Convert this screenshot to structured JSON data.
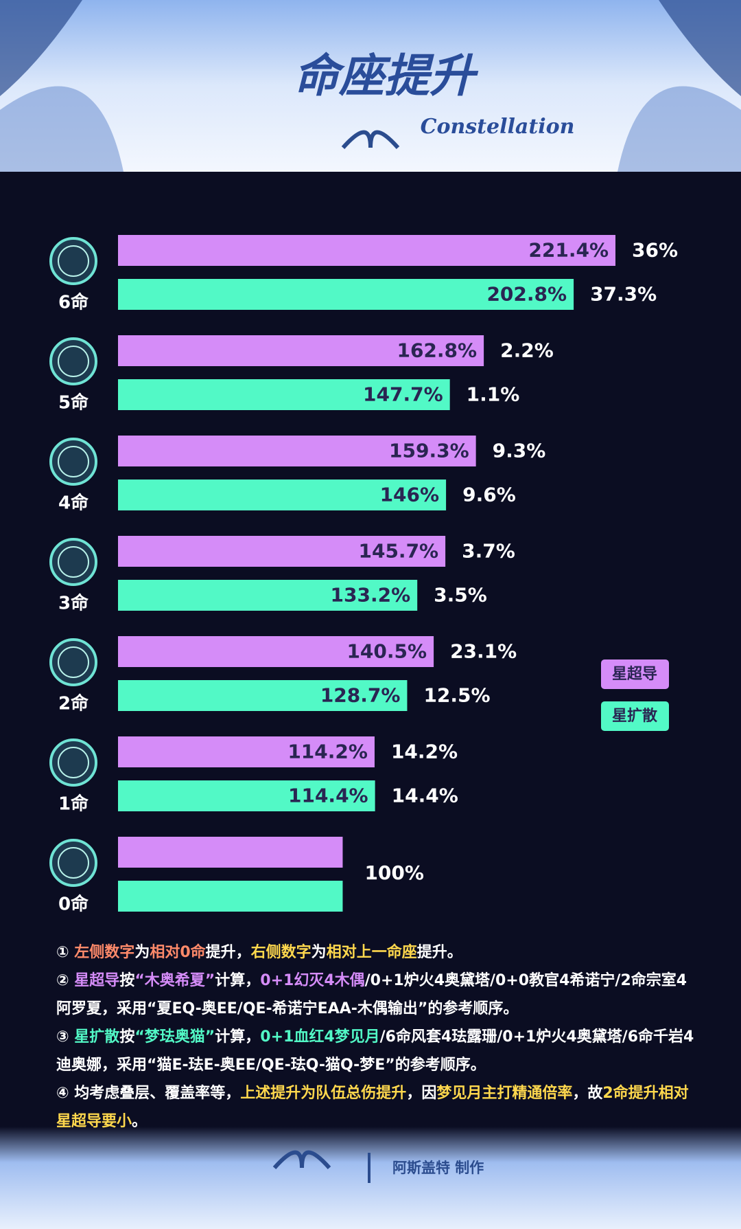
{
  "chart_data": {
    "type": "bar",
    "orientation": "horizontal",
    "title": "命座提升",
    "subtitle": "Constellation",
    "categories": [
      "6命",
      "5命",
      "4命",
      "3命",
      "2命",
      "1命",
      "0命"
    ],
    "series": [
      {
        "name": "星超导",
        "color": "#d58cf8",
        "values": [
          221.4,
          162.8,
          159.3,
          145.7,
          140.5,
          114.2,
          100
        ],
        "value_labels": [
          "221.4%",
          "162.8%",
          "159.3%",
          "145.7%",
          "140.5%",
          "114.2%",
          null
        ],
        "increase": [
          36,
          2.2,
          9.3,
          3.7,
          23.1,
          14.2,
          null
        ],
        "increase_labels": [
          "36%",
          "2.2%",
          "9.3%",
          "3.7%",
          "23.1%",
          "14.2%",
          null
        ]
      },
      {
        "name": "星扩散",
        "color": "#52f9c6",
        "values": [
          202.8,
          147.7,
          146,
          133.2,
          128.7,
          114.4,
          100
        ],
        "value_labels": [
          "202.8%",
          "147.7%",
          "146%",
          "133.2%",
          "128.7%",
          "114.4%",
          null
        ],
        "increase": [
          37.3,
          1.1,
          9.6,
          3.5,
          12.5,
          14.4,
          null
        ],
        "increase_labels": [
          "37.3%",
          "1.1%",
          "9.6%",
          "3.5%",
          "12.5%",
          "14.4%",
          null
        ]
      }
    ],
    "base_label": "100%"
  },
  "notes": [
    [
      {
        "text": "① "
      },
      {
        "text": "左侧数字",
        "color": "#ff8a6a"
      },
      {
        "text": "为"
      },
      {
        "text": "相对0命",
        "color": "#ff8a6a"
      },
      {
        "text": "提升，"
      },
      {
        "text": "右侧数字",
        "color": "#ffd84d"
      },
      {
        "text": "为"
      },
      {
        "text": "相对上一命座",
        "color": "#ffd84d"
      },
      {
        "text": "提升。"
      }
    ],
    [
      {
        "text": "② "
      },
      {
        "text": "星超导",
        "color": "#d58cf8"
      },
      {
        "text": "按"
      },
      {
        "text": "“木奥希夏”",
        "color": "#d58cf8"
      },
      {
        "text": "计算，"
      },
      {
        "text": "0+1幻灭4木偶",
        "color": "#d58cf8"
      },
      {
        "text": "/0+1炉火4奥黛塔/0+0教官4希诺宁/2命宗室4阿罗夏，采用“夏EQ-奥EE/QE-希诺宁EAA-木偶输出”的参考顺序。"
      }
    ],
    [
      {
        "text": "③ "
      },
      {
        "text": "星扩散",
        "color": "#52f9c6"
      },
      {
        "text": "按"
      },
      {
        "text": "“梦珐奥猫”",
        "color": "#52f9c6"
      },
      {
        "text": "计算，"
      },
      {
        "text": "0+1血红4梦见月",
        "color": "#52f9c6"
      },
      {
        "text": "/6命风套4珐露珊/0+1炉火4奥黛塔/6命千岩4迪奥娜，采用“猫E-珐E-奥EE/QE-珐Q-猫Q-梦E”的参考顺序。"
      }
    ],
    [
      {
        "text": "④ 均考虑叠层、覆盖率等，"
      },
      {
        "text": "上述提升为队伍总伤提升",
        "color": "#ffd84d"
      },
      {
        "text": "，因"
      },
      {
        "text": "梦见月主打精通倍率",
        "color": "#ffd84d"
      },
      {
        "text": "，故"
      },
      {
        "text": "2命提升相对星超导要小",
        "color": "#ffd84d"
      },
      {
        "text": "。"
      }
    ]
  ],
  "footer": "阿斯盖特 制作"
}
